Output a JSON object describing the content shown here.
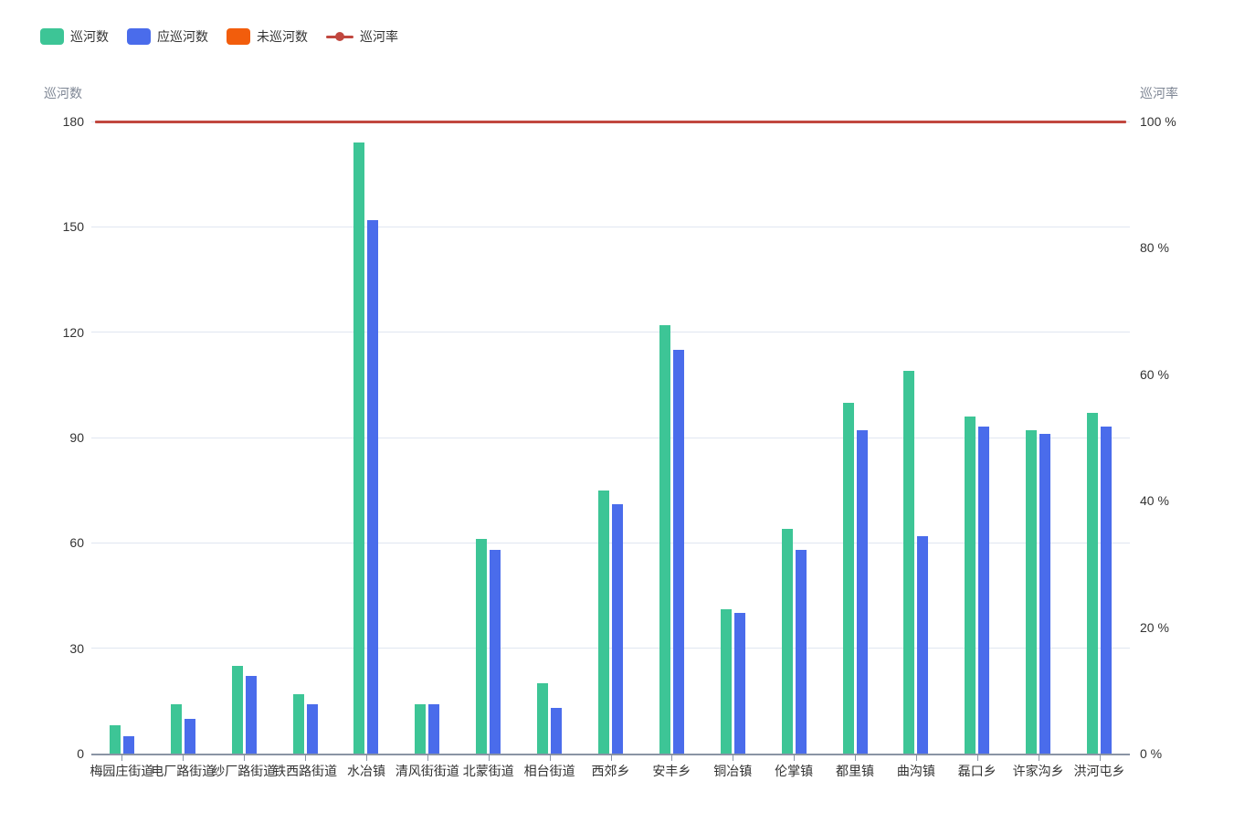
{
  "legend": {
    "items": [
      {
        "label": "巡河数",
        "type": "bar",
        "color": "#3dc596"
      },
      {
        "label": "应巡河数",
        "type": "bar",
        "color": "#4a6ceb"
      },
      {
        "label": "未巡河数",
        "type": "bar",
        "color": "#f25d0c"
      },
      {
        "label": "巡河率",
        "type": "line",
        "color": "#c1473f"
      }
    ]
  },
  "left_axis": {
    "name": "巡河数",
    "ticks": [
      0,
      30,
      60,
      90,
      120,
      150,
      180
    ],
    "max": 180
  },
  "right_axis": {
    "name": "巡河率",
    "ticks": [
      "0 %",
      "20 %",
      "40 %",
      "60 %",
      "80 %",
      "100 %"
    ],
    "tick_values": [
      0,
      20,
      40,
      60,
      80,
      100
    ],
    "max": 100
  },
  "chart_data": {
    "type": "bar",
    "title": "",
    "categories": [
      "梅园庄街道",
      "电厂路街道",
      "纱厂路街道",
      "铁西路街道",
      "水冶镇",
      "清风街街道",
      "北蒙街道",
      "相台街道",
      "西郊乡",
      "安丰乡",
      "铜冶镇",
      "伦掌镇",
      "都里镇",
      "曲沟镇",
      "磊口乡",
      "许家沟乡",
      "洪河屯乡"
    ],
    "series": [
      {
        "name": "巡河数",
        "type": "bar",
        "axis": "left",
        "color": "#3dc596",
        "values": [
          8,
          14,
          25,
          17,
          174,
          14,
          61,
          20,
          75,
          122,
          41,
          64,
          100,
          109,
          96,
          92,
          97
        ]
      },
      {
        "name": "应巡河数",
        "type": "bar",
        "axis": "left",
        "color": "#4a6ceb",
        "values": [
          5,
          10,
          22,
          14,
          152,
          14,
          58,
          13,
          71,
          115,
          40,
          58,
          92,
          62,
          93,
          91,
          93
        ]
      },
      {
        "name": "未巡河数",
        "type": "bar",
        "axis": "left",
        "color": "#f25d0c",
        "values": [
          0,
          0,
          0,
          0,
          0,
          0,
          0,
          0,
          0,
          0,
          0,
          0,
          0,
          0,
          0,
          0,
          0
        ]
      },
      {
        "name": "巡河率",
        "type": "line",
        "axis": "right",
        "color": "#c1473f",
        "values": [
          100,
          100,
          100,
          100,
          100,
          100,
          100,
          100,
          100,
          100,
          100,
          100,
          100,
          100,
          100,
          100,
          100
        ]
      }
    ],
    "ylabel_left": "巡河数",
    "ylabel_right": "巡河率",
    "ylim_left": [
      0,
      180
    ],
    "ylim_right": [
      0,
      100
    ],
    "grid": true,
    "legend_position": "top-left",
    "colors": {
      "gridline": "#e0e6f1",
      "axis_line": "#8a94a4",
      "tick_label": "#333333",
      "axis_name": "#7e8694"
    }
  }
}
